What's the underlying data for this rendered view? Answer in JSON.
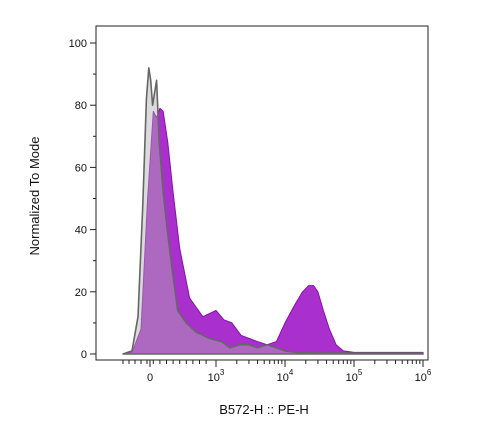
{
  "chart_data": {
    "type": "area",
    "title": "",
    "xlabel": "B572-H :: PE-H",
    "ylabel": "Normalized To Mode",
    "ylim": [
      0,
      100
    ],
    "y_ticks": [
      0,
      20,
      40,
      60,
      80,
      100
    ],
    "x_ticks": [
      {
        "base": "0",
        "exp": ""
      },
      {
        "base": "10",
        "exp": "3"
      },
      {
        "base": "10",
        "exp": "4"
      },
      {
        "base": "10",
        "exp": "5"
      },
      {
        "base": "10",
        "exp": "6"
      }
    ],
    "x_scale": "biexponential",
    "series": [
      {
        "color": "#a21ec9",
        "x": [
          -450,
          -300,
          -150,
          -40,
          50,
          100,
          150,
          200,
          270,
          350,
          450,
          600,
          800,
          1000,
          1300,
          1700,
          2300,
          3000,
          4000,
          5500,
          7500,
          10000,
          14000,
          18000,
          22000,
          26000,
          30000,
          36000,
          44000,
          55000,
          70000,
          100000,
          200000,
          1000000
        ],
        "values": [
          0,
          0.5,
          8,
          50,
          78,
          76,
          79,
          78,
          68,
          52,
          34,
          18,
          12,
          14,
          11,
          10,
          6,
          5,
          4,
          3,
          4,
          10,
          16,
          20,
          22,
          22,
          20,
          14,
          8,
          3,
          1,
          0.5,
          0.5,
          0.5
        ]
      },
      {
        "color": "#666666",
        "x": [
          -450,
          -300,
          -200,
          -120,
          -60,
          -20,
          10,
          40,
          70,
          100,
          140,
          200,
          260,
          330,
          420,
          550,
          700,
          900,
          1200,
          1600,
          2200,
          3000,
          4000,
          5500,
          7500,
          10000,
          15000,
          30000,
          1000000
        ],
        "values": [
          0,
          1,
          12,
          48,
          82,
          92,
          88,
          80,
          84,
          88,
          68,
          52,
          40,
          28,
          14,
          10,
          7,
          5,
          4,
          2,
          3,
          3,
          2,
          3,
          2,
          1,
          0.5,
          0.3,
          0.3
        ]
      }
    ]
  }
}
